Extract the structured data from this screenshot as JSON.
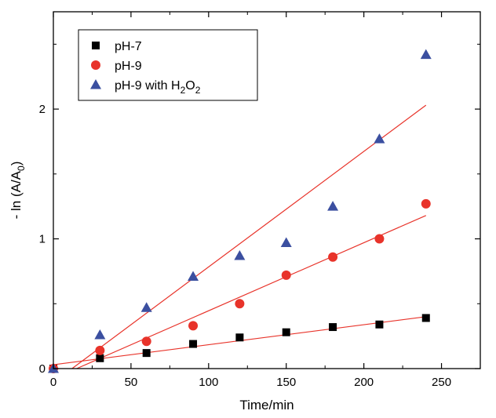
{
  "chart_data": {
    "type": "scatter",
    "xlabel": "Time/min",
    "ylabel": "- ln (A/A",
    "ylabel_sub": "0",
    "ylabel_end": ")",
    "xlim": [
      0,
      275
    ],
    "ylim": [
      0,
      2.75
    ],
    "x_ticks": [
      0,
      50,
      100,
      150,
      200,
      250
    ],
    "y_ticks": [
      0,
      1,
      2
    ],
    "x_tick_labels": [
      "0",
      "50",
      "100",
      "150",
      "200",
      "250"
    ],
    "y_tick_labels": [
      "0",
      "1",
      "2"
    ],
    "grid": false,
    "legend_position": "top-left",
    "series": [
      {
        "name": "pH-7",
        "name_parts": [
          "pH-7"
        ],
        "marker": "square",
        "color": "#000000",
        "x": [
          0,
          30,
          60,
          90,
          120,
          150,
          180,
          210,
          240
        ],
        "y": [
          0.0,
          0.08,
          0.12,
          0.19,
          0.24,
          0.28,
          0.32,
          0.34,
          0.39
        ],
        "fit_line": {
          "x": [
            0,
            240
          ],
          "y": [
            0.03,
            0.4
          ],
          "color": "#e8332a"
        }
      },
      {
        "name": "pH-9",
        "name_parts": [
          "pH-9"
        ],
        "marker": "circle",
        "color": "#e8332a",
        "x": [
          0,
          30,
          60,
          90,
          120,
          150,
          180,
          210,
          240
        ],
        "y": [
          0.0,
          0.14,
          0.21,
          0.33,
          0.5,
          0.72,
          0.86,
          1.0,
          1.27
        ],
        "fit_line": {
          "x": [
            15,
            240
          ],
          "y": [
            0.0,
            1.18
          ],
          "color": "#e8332a"
        }
      },
      {
        "name": "pH-9 with H2O2",
        "name_parts": [
          "pH-9 with H",
          "2",
          "O",
          "2"
        ],
        "marker": "triangle",
        "color": "#3b4fa0",
        "x": [
          0,
          30,
          60,
          90,
          120,
          150,
          180,
          210,
          240
        ],
        "y": [
          0.0,
          0.26,
          0.47,
          0.71,
          0.87,
          0.97,
          1.25,
          1.77,
          2.42
        ],
        "fit_line": {
          "x": [
            12,
            240
          ],
          "y": [
            0.0,
            2.03
          ],
          "color": "#e8332a"
        }
      }
    ]
  }
}
